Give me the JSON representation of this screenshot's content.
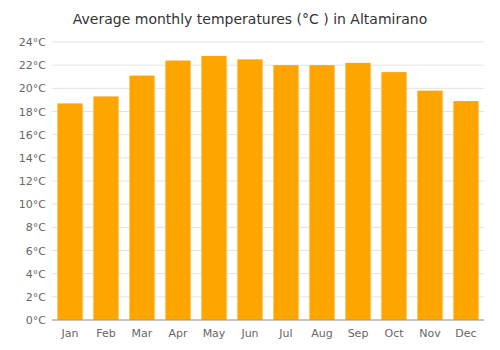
{
  "chart_data": {
    "type": "bar",
    "title": "Average monthly temperatures (°C ) in Altamirano",
    "categories": [
      "Jan",
      "Feb",
      "Mar",
      "Apr",
      "May",
      "Jun",
      "Jul",
      "Aug",
      "Sep",
      "Oct",
      "Nov",
      "Dec"
    ],
    "values": [
      18.7,
      19.3,
      21.1,
      22.4,
      22.8,
      22.5,
      22.0,
      22.0,
      22.2,
      21.4,
      19.8,
      18.9
    ],
    "color": "#FFA500",
    "ylim": [
      0,
      24
    ],
    "yticks": [
      {
        "value": 0,
        "label": "0°C"
      },
      {
        "value": 2,
        "label": "2°C"
      },
      {
        "value": 4,
        "label": "4°C"
      },
      {
        "value": 6,
        "label": "6°C"
      },
      {
        "value": 8,
        "label": "8°C"
      },
      {
        "value": 10,
        "label": "10°C"
      },
      {
        "value": 12,
        "label": "12°C"
      },
      {
        "value": 14,
        "label": "14°C"
      },
      {
        "value": 16,
        "label": "16°C"
      },
      {
        "value": 18,
        "label": "18°C"
      },
      {
        "value": 20,
        "label": "20°C"
      },
      {
        "value": 22,
        "label": "22°C"
      },
      {
        "value": 24,
        "label": "24°C"
      }
    ],
    "grid": true
  }
}
